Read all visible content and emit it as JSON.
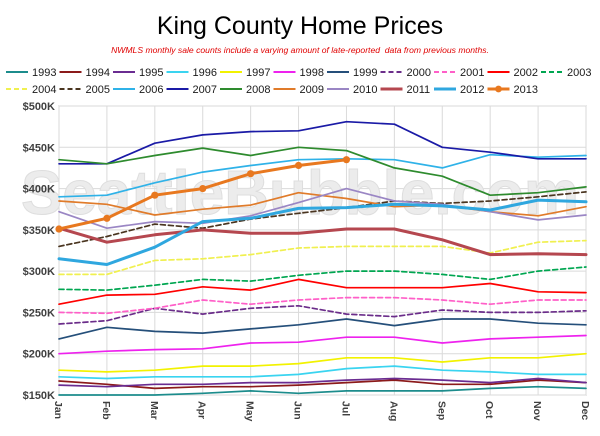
{
  "chart_data": {
    "type": "line",
    "title": "King County Home Prices",
    "subtitle": "NWMLS monthly sale counts include a varying amount of late-reported  data from previous months.",
    "categories": [
      "Jan",
      "Feb",
      "Mar",
      "Apr",
      "May",
      "Jun",
      "Jul",
      "Aug",
      "Sep",
      "Oct",
      "Nov",
      "Dec"
    ],
    "ylim": [
      150,
      500
    ],
    "yticks": [
      150,
      200,
      250,
      300,
      350,
      400,
      450,
      500
    ],
    "ytick_labels": [
      "$150K",
      "$200K",
      "$250K",
      "$300K",
      "$350K",
      "$400K",
      "$450K",
      "$500K"
    ],
    "grid": true,
    "legend": "top",
    "series": [
      {
        "name": "1993",
        "color": "#1c8c8c",
        "line": "solid",
        "values": [
          150,
          150,
          150,
          152,
          155,
          152,
          155,
          155,
          155,
          158,
          160,
          158
        ]
      },
      {
        "name": "1994",
        "color": "#8b1a1a",
        "line": "solid",
        "values": [
          167,
          163,
          158,
          160,
          160,
          162,
          165,
          168,
          163,
          163,
          168,
          165
        ]
      },
      {
        "name": "1995",
        "color": "#6a2c91",
        "line": "solid",
        "values": [
          162,
          160,
          163,
          163,
          165,
          165,
          168,
          170,
          168,
          165,
          170,
          165
        ]
      },
      {
        "name": "1996",
        "color": "#3ad4f0",
        "line": "solid",
        "values": [
          172,
          170,
          172,
          172,
          172,
          175,
          182,
          185,
          180,
          178,
          175,
          175
        ]
      },
      {
        "name": "1997",
        "color": "#f2f200",
        "line": "solid",
        "values": [
          180,
          178,
          180,
          185,
          185,
          188,
          195,
          195,
          190,
          195,
          195,
          200
        ]
      },
      {
        "name": "1998",
        "color": "#ee22ee",
        "line": "solid",
        "values": [
          200,
          203,
          205,
          206,
          213,
          214,
          220,
          220,
          213,
          218,
          220,
          222
        ]
      },
      {
        "name": "1999",
        "color": "#254f7a",
        "line": "solid",
        "values": [
          218,
          232,
          227,
          225,
          230,
          235,
          242,
          234,
          242,
          242,
          237,
          235
        ]
      },
      {
        "name": "2000",
        "color": "#6b2d8a",
        "line": "dashed",
        "values": [
          236,
          240,
          255,
          248,
          255,
          258,
          248,
          245,
          253,
          250,
          250,
          252
        ]
      },
      {
        "name": "2001",
        "color": "#ff5fc8",
        "line": "dashed",
        "values": [
          250,
          249,
          255,
          265,
          260,
          265,
          268,
          268,
          265,
          260,
          265,
          265
        ]
      },
      {
        "name": "2002",
        "color": "#ff0000",
        "line": "solid",
        "values": [
          260,
          271,
          272,
          281,
          277,
          290,
          280,
          280,
          280,
          285,
          275,
          274
        ]
      },
      {
        "name": "2003",
        "color": "#00a651",
        "line": "dashed",
        "values": [
          278,
          277,
          283,
          290,
          288,
          295,
          300,
          300,
          296,
          290,
          300,
          305
        ]
      },
      {
        "name": "2004",
        "color": "#f0f050",
        "line": "dashed",
        "values": [
          296,
          296,
          313,
          315,
          320,
          328,
          330,
          330,
          330,
          322,
          335,
          337
        ]
      },
      {
        "name": "2005",
        "color": "#4a3520",
        "line": "dashed",
        "values": [
          330,
          342,
          357,
          352,
          363,
          370,
          377,
          385,
          382,
          385,
          390,
          396
        ]
      },
      {
        "name": "2006",
        "color": "#2fb2e8",
        "line": "solid",
        "values": [
          390,
          392,
          407,
          420,
          428,
          435,
          436,
          435,
          425,
          441,
          438,
          440
        ]
      },
      {
        "name": "2007",
        "color": "#1a1aa6",
        "line": "solid",
        "values": [
          430,
          430,
          455,
          465,
          469,
          470,
          481,
          478,
          450,
          444,
          436,
          436
        ]
      },
      {
        "name": "2008",
        "color": "#2e8b2e",
        "line": "solid",
        "values": [
          435,
          430,
          440,
          449,
          440,
          450,
          446,
          425,
          415,
          392,
          395,
          402
        ]
      },
      {
        "name": "2009",
        "color": "#e07b2a",
        "line": "solid",
        "values": [
          385,
          381,
          368,
          375,
          380,
          395,
          388,
          378,
          380,
          372,
          367,
          378
        ]
      },
      {
        "name": "2010",
        "color": "#9a86c4",
        "line": "solid",
        "values": [
          372,
          352,
          360,
          358,
          367,
          383,
          400,
          385,
          381,
          372,
          362,
          368
        ]
      },
      {
        "name": "2011",
        "color": "#b5474f",
        "line": "solid",
        "values": [
          352,
          335,
          344,
          350,
          346,
          346,
          351,
          351,
          338,
          320,
          321,
          320
        ]
      },
      {
        "name": "2012",
        "color": "#2fa7df",
        "line": "solid",
        "values": [
          315,
          308,
          329,
          360,
          364,
          376,
          377,
          381,
          379,
          374,
          386,
          384
        ]
      },
      {
        "name": "2013",
        "color": "#e8781f",
        "line": "solid",
        "marker": "circle",
        "values": [
          351,
          364,
          392,
          400,
          418,
          428,
          435,
          null,
          null,
          null,
          null,
          null
        ]
      }
    ]
  },
  "watermark": "SeattleBubble.com"
}
